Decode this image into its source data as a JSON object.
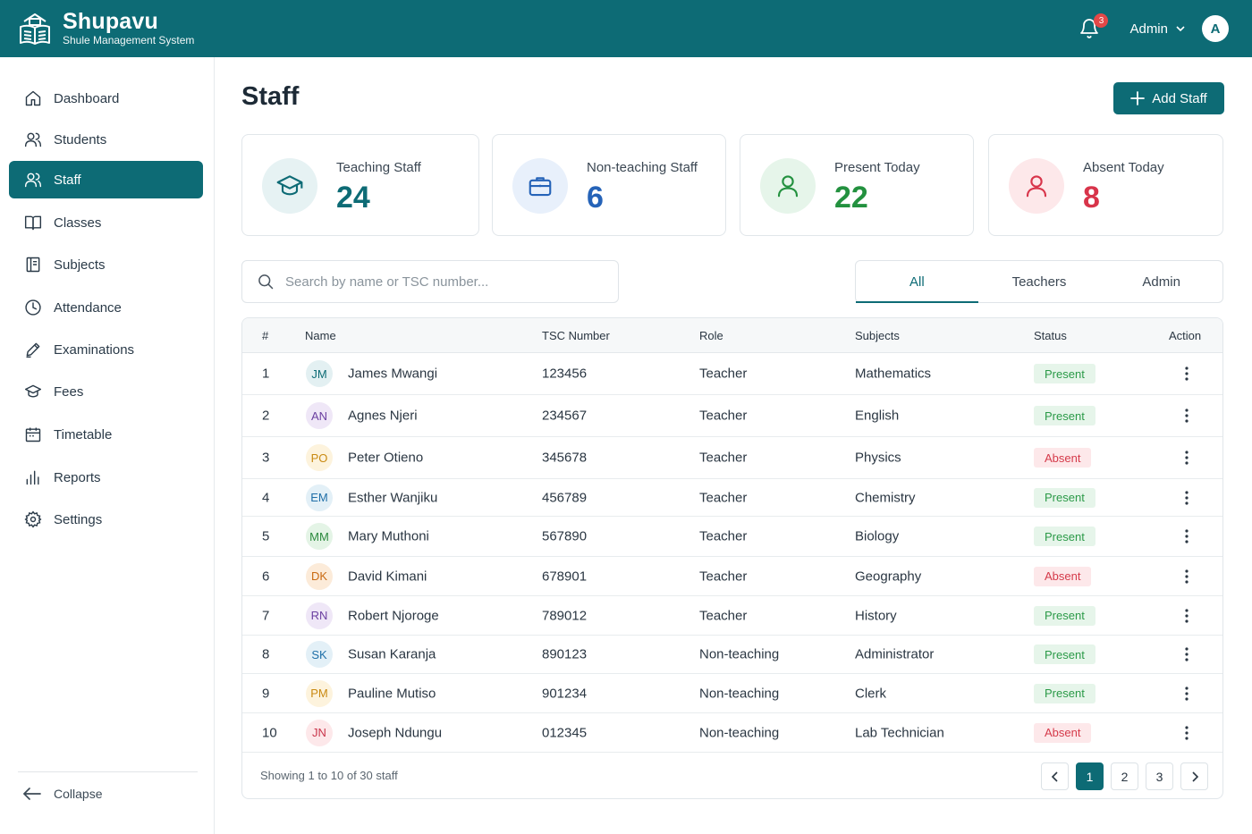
{
  "brand": {
    "name": "Shupavu",
    "subtitle": "Shule Management System"
  },
  "topbar": {
    "notification_count": "3",
    "user_label": "Admin",
    "avatar_initial": "A"
  },
  "sidebar": {
    "items": [
      {
        "label": "Dashboard",
        "icon": "home-icon"
      },
      {
        "label": "Students",
        "icon": "users-icon"
      },
      {
        "label": "Staff",
        "icon": "users-icon",
        "active": true
      },
      {
        "label": "Classes",
        "icon": "book-open-icon"
      },
      {
        "label": "Subjects",
        "icon": "notebook-icon"
      },
      {
        "label": "Attendance",
        "icon": "clock-icon"
      },
      {
        "label": "Examinations",
        "icon": "pencil-icon"
      },
      {
        "label": "Fees",
        "icon": "graduation-cap-icon"
      },
      {
        "label": "Timetable",
        "icon": "calendar-icon"
      },
      {
        "label": "Reports",
        "icon": "bar-chart-icon"
      },
      {
        "label": "Settings",
        "icon": "gear-icon"
      }
    ],
    "collapse_label": "Collapse"
  },
  "page": {
    "title": "Staff",
    "add_button_label": "Add Staff"
  },
  "stats": [
    {
      "label": "Teaching Staff",
      "value": "24",
      "color": "#0d6b75",
      "bg": "#e6f2f3",
      "icon": "graduation-cap-icon"
    },
    {
      "label": "Non-teaching Staff",
      "value": "6",
      "color": "#2563b8",
      "bg": "#e8f0fb",
      "icon": "briefcase-icon"
    },
    {
      "label": "Present Today",
      "value": "22",
      "color": "#23913f",
      "bg": "#e6f5ea",
      "icon": "user-icon"
    },
    {
      "label": "Absent Today",
      "value": "8",
      "color": "#d8344a",
      "bg": "#fde8ea",
      "icon": "user-icon"
    }
  ],
  "search": {
    "placeholder": "Search by name or TSC number..."
  },
  "filter_tabs": [
    {
      "label": "All",
      "active": true
    },
    {
      "label": "Teachers"
    },
    {
      "label": "Admin"
    }
  ],
  "table": {
    "headers": [
      "#",
      "Name",
      "TSC Number",
      "Role",
      "Subjects",
      "Status",
      "Action"
    ],
    "rows": [
      {
        "num": "1",
        "initials": "JM",
        "name": "James Mwangi",
        "tsc": "123456",
        "role": "Teacher",
        "subject": "Mathematics",
        "status": "Present",
        "avatar_bg": "#e3f0f2",
        "avatar_fg": "#0d6b75"
      },
      {
        "num": "2",
        "initials": "AN",
        "name": "Agnes Njeri",
        "tsc": "234567",
        "role": "Teacher",
        "subject": "English",
        "status": "Present",
        "avatar_bg": "#efe7f7",
        "avatar_fg": "#6b3fa0"
      },
      {
        "num": "3",
        "initials": "PO",
        "name": "Peter Otieno",
        "tsc": "345678",
        "role": "Teacher",
        "subject": "Physics",
        "status": "Absent",
        "avatar_bg": "#fdf3dd",
        "avatar_fg": "#c98a12"
      },
      {
        "num": "4",
        "initials": "EM",
        "name": "Esther Wanjiku",
        "tsc": "456789",
        "role": "Teacher",
        "subject": "Chemistry",
        "status": "Present",
        "avatar_bg": "#e3f0f7",
        "avatar_fg": "#1f6fa8"
      },
      {
        "num": "5",
        "initials": "MM",
        "name": "Mary Muthoni",
        "tsc": "567890",
        "role": "Teacher",
        "subject": "Biology",
        "status": "Present",
        "avatar_bg": "#e4f4e6",
        "avatar_fg": "#2b8a3e"
      },
      {
        "num": "6",
        "initials": "DK",
        "name": "David Kimani",
        "tsc": "678901",
        "role": "Teacher",
        "subject": "Geography",
        "status": "Absent",
        "avatar_bg": "#fcebd9",
        "avatar_fg": "#c96a12"
      },
      {
        "num": "7",
        "initials": "RN",
        "name": "Robert Njoroge",
        "tsc": "789012",
        "role": "Teacher",
        "subject": "History",
        "status": "Present",
        "avatar_bg": "#efe7f7",
        "avatar_fg": "#6b3fa0"
      },
      {
        "num": "8",
        "initials": "SK",
        "name": "Susan Karanja",
        "tsc": "890123",
        "role": "Non-teaching",
        "subject": "Administrator",
        "status": "Present",
        "avatar_bg": "#e3f0f7",
        "avatar_fg": "#1f6fa8"
      },
      {
        "num": "9",
        "initials": "PM",
        "name": "Pauline Mutiso",
        "tsc": "901234",
        "role": "Non-teaching",
        "subject": "Clerk",
        "status": "Present",
        "avatar_bg": "#fdf3dd",
        "avatar_fg": "#c98a12"
      },
      {
        "num": "10",
        "initials": "JN",
        "name": "Joseph Ndungu",
        "tsc": "012345",
        "role": "Non-teaching",
        "subject": "Lab Technician",
        "status": "Absent",
        "avatar_bg": "#fde8ea",
        "avatar_fg": "#c9344a"
      }
    ],
    "footer_text": "Showing 1 to 10 of 30 staff",
    "pages": [
      "1",
      "2",
      "3"
    ],
    "current_page": "1"
  }
}
